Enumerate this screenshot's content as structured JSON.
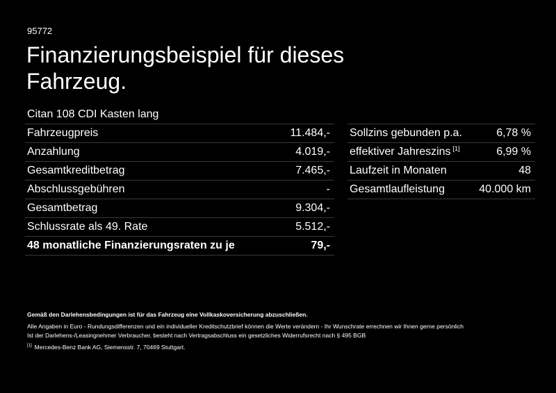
{
  "code": "95772",
  "title": "Finanzierungsbeispiel für dieses Fahrzeug.",
  "model": "Citan 108 CDI Kasten lang",
  "left_table": [
    {
      "label": "Fahrzeugpreis",
      "value": "11.484,-"
    },
    {
      "label": "Anzahlung",
      "value": "4.019,-"
    },
    {
      "label": "Gesamtkreditbetrag",
      "value": "7.465,-"
    },
    {
      "label": "Abschlussgebühren",
      "value": "-"
    },
    {
      "label": "Gesamtbetrag",
      "value": "9.304,-"
    },
    {
      "label": "Schlussrate als 49. Rate",
      "value": "5.512,-"
    },
    {
      "label": "48 monatliche Finanzierungsraten zu je",
      "value": "79,-"
    }
  ],
  "right_table": [
    {
      "label": "Sollzins gebunden p.a.",
      "value": "6,78 %"
    },
    {
      "label": "effektiver Jahreszins",
      "sup": "[1]",
      "value": "6,99 %"
    },
    {
      "label": "Laufzeit in Monaten",
      "value": "48"
    },
    {
      "label": "Gesamtlaufleistung",
      "value": "40.000 km"
    }
  ],
  "footer": {
    "bold_note": "Gemäß den Darlehensbedingungen ist für das Fahrzeug eine Vollkaskoversicherung abzuschließen.",
    "note_1": "Alle Angaben in Euro - Rundungsdifferenzen und ein individueller Kreditschutzbrief können die Werte verändern - Ihr Wunschrate errechnen wir Ihnen gerne persönlich",
    "note_2": "Ist der Darlehens-/Leasingnehmer Verbraucher, besteht nach Vertragsabschluss ein gesetzliches Widerrufsrecht nach § 495 BGB",
    "footnote_mark": "[1]",
    "footnote_text": "Mercedes-Benz Bank AG, Siemensstr. 7, 70469 Stuttgart."
  }
}
